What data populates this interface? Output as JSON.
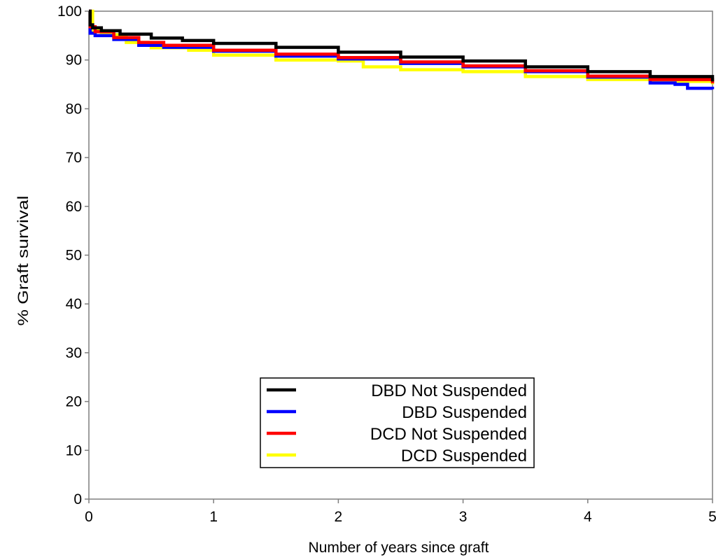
{
  "chart_data": {
    "type": "line",
    "xlabel": "Number of years since graft",
    "ylabel": "% Graft survival",
    "xlim": [
      0,
      5
    ],
    "ylim": [
      0,
      100
    ],
    "xticks": [
      "0",
      "1",
      "2",
      "3",
      "4",
      "5"
    ],
    "yticks": [
      "0",
      "10",
      "20",
      "30",
      "40",
      "50",
      "60",
      "70",
      "80",
      "90",
      "100"
    ],
    "grid": false,
    "legend_position": "bottom-center",
    "series": [
      {
        "name": "DBD Not Suspended",
        "color": "#000000",
        "x": [
          0,
          0.01,
          0.03,
          0.1,
          0.25,
          0.5,
          0.75,
          1.0,
          1.5,
          2.0,
          2.5,
          3.0,
          3.5,
          4.0,
          4.5,
          5.0
        ],
        "y": [
          100,
          97.2,
          96.6,
          96.0,
          95.3,
          94.5,
          94.0,
          93.4,
          92.6,
          91.6,
          90.6,
          89.8,
          88.6,
          87.6,
          86.6,
          85.6
        ]
      },
      {
        "name": "DBD Suspended",
        "color": "#0000ff",
        "x": [
          0,
          0.01,
          0.05,
          0.2,
          0.4,
          0.6,
          1.0,
          1.5,
          2.0,
          2.5,
          3.0,
          3.5,
          4.0,
          4.5,
          4.7,
          4.8,
          5.0
        ],
        "y": [
          100,
          95.5,
          95.0,
          94.2,
          93.0,
          92.6,
          91.8,
          90.8,
          90.2,
          89.3,
          88.6,
          87.6,
          86.5,
          85.3,
          85.0,
          84.2,
          84.0
        ]
      },
      {
        "name": "DCD Not Suspended",
        "color": "#ff0000",
        "x": [
          0,
          0.01,
          0.05,
          0.2,
          0.4,
          0.6,
          1.0,
          1.5,
          2.0,
          2.5,
          3.0,
          3.5,
          4.0,
          4.5,
          5.0
        ],
        "y": [
          100,
          96.8,
          95.8,
          94.6,
          93.6,
          93.0,
          92.0,
          91.2,
          90.5,
          89.6,
          88.8,
          87.8,
          86.7,
          86.0,
          85.2
        ]
      },
      {
        "name": "DCD Suspended",
        "color": "#ffff00",
        "x": [
          0,
          0.01,
          0.03,
          0.1,
          0.3,
          0.5,
          0.8,
          1.0,
          1.5,
          2.0,
          2.2,
          2.5,
          3.0,
          3.5,
          4.0,
          4.5,
          5.0
        ],
        "y": [
          100,
          100,
          96.0,
          95.2,
          93.6,
          92.5,
          92.0,
          91.0,
          90.0,
          89.8,
          88.6,
          88.0,
          87.6,
          86.6,
          86.0,
          85.6,
          85.0
        ]
      }
    ]
  }
}
